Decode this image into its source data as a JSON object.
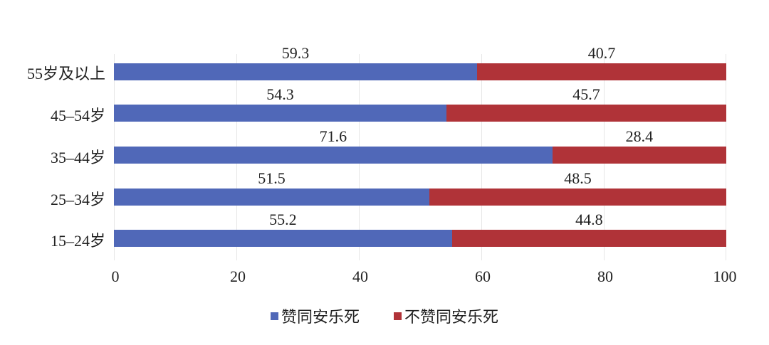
{
  "chart_data": {
    "type": "bar",
    "orientation": "horizontal",
    "stacked": true,
    "title": "",
    "xlabel": "",
    "ylabel": "",
    "xlim": [
      0,
      100
    ],
    "x_ticks": [
      "0",
      "20",
      "40",
      "60",
      "80",
      "100"
    ],
    "grid": true,
    "legend_position": "bottom",
    "categories": [
      "55岁及以上",
      "45-54岁",
      "35-44岁",
      "25-34岁",
      "15-24岁"
    ],
    "series": [
      {
        "name": "赞同安乐死",
        "color": "#5068b8",
        "values": [
          59.3,
          54.3,
          71.6,
          51.5,
          55.2
        ]
      },
      {
        "name": "不赞同安乐死",
        "color": "#b03338",
        "values": [
          40.7,
          45.7,
          28.4,
          48.5,
          44.8
        ]
      }
    ]
  },
  "rows": [
    {
      "label": "55岁及以上",
      "a": "59.3",
      "b": "40.7"
    },
    {
      "label": "45–54岁",
      "a": "54.3",
      "b": "45.7"
    },
    {
      "label": "35–44岁",
      "a": "71.6",
      "b": "28.4"
    },
    {
      "label": "25–34岁",
      "a": "51.5",
      "b": "48.5"
    },
    {
      "label": "15–24岁",
      "a": "55.2",
      "b": "44.8"
    }
  ],
  "ticks": [
    "0",
    "20",
    "40",
    "60",
    "80",
    "100"
  ],
  "legend": {
    "agree": "赞同安乐死",
    "disagree": "不赞同安乐死"
  }
}
